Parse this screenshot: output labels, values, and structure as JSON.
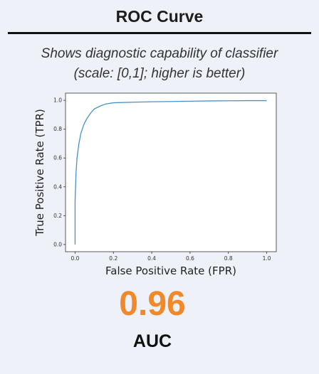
{
  "header": {
    "title": "ROC Curve",
    "subtitle_line1": "Shows diagnostic capability of classifier",
    "subtitle_line2": "(scale: [0,1]; higher is better)"
  },
  "metric": {
    "value": "0.96",
    "label": "AUC",
    "color": "#f0892a"
  },
  "chart_data": {
    "type": "line",
    "xlabel": "False Positive Rate (FPR)",
    "ylabel": "True Positive Rate (TPR)",
    "xlim": [
      -0.05,
      1.05
    ],
    "ylim": [
      -0.05,
      1.05
    ],
    "xticks": [
      "0.0",
      "0.2",
      "0.4",
      "0.6",
      "0.8",
      "1.0"
    ],
    "yticks": [
      "0.0",
      "0.2",
      "0.4",
      "0.6",
      "0.8",
      "1.0"
    ],
    "grid": false,
    "line_color": "#4a90c8",
    "series": [
      {
        "x": [
          0.0,
          0.0,
          0.005,
          0.01,
          0.02,
          0.03,
          0.045,
          0.06,
          0.08,
          0.1,
          0.13,
          0.16,
          0.2,
          0.3,
          0.4,
          0.5,
          0.6,
          0.7,
          0.8,
          0.9,
          1.0
        ],
        "y": [
          0.0,
          0.3,
          0.5,
          0.6,
          0.7,
          0.77,
          0.83,
          0.87,
          0.91,
          0.94,
          0.96,
          0.975,
          0.983,
          0.987,
          0.99,
          0.992,
          0.994,
          0.996,
          0.997,
          0.998,
          0.998
        ]
      }
    ]
  }
}
